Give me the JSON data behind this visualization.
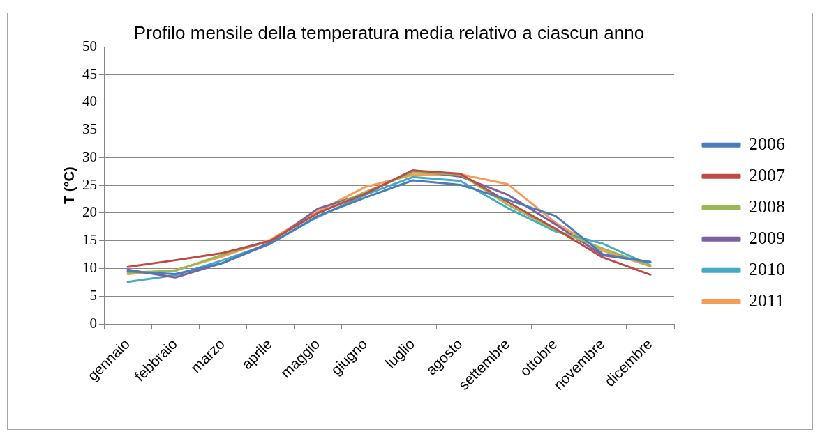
{
  "chart_data": {
    "type": "line",
    "title": "Profilo mensile della temperatura media relativo a ciascun anno",
    "ylabel": "T (°C)",
    "categories": [
      "gennaio",
      "febbraio",
      "marzo",
      "aprile",
      "maggio",
      "giugno",
      "luglio",
      "agosto",
      "settembre",
      "ottobre",
      "novembre",
      "dicembre"
    ],
    "series": [
      {
        "name": "2006",
        "color": "#4a7ebb",
        "values": [
          9.5,
          9.0,
          11.0,
          14.5,
          19.5,
          22.8,
          25.9,
          25.1,
          22.4,
          19.5,
          12.6,
          11.1
        ]
      },
      {
        "name": "2007",
        "color": "#be4b48",
        "values": [
          10.3,
          11.5,
          12.8,
          15.0,
          20.0,
          23.5,
          27.7,
          27.1,
          22.0,
          17.2,
          12.0,
          8.9
        ]
      },
      {
        "name": "2008",
        "color": "#98b954",
        "values": [
          9.3,
          9.6,
          12.5,
          15.0,
          20.0,
          23.8,
          27.3,
          27.0,
          21.5,
          17.0,
          13.6,
          10.5
        ]
      },
      {
        "name": "2009",
        "color": "#7d60a0",
        "values": [
          9.8,
          8.4,
          11.0,
          14.7,
          20.8,
          23.5,
          27.7,
          26.6,
          23.3,
          18.0,
          12.4,
          11.2
        ]
      },
      {
        "name": "2010",
        "color": "#46aac5",
        "values": [
          7.6,
          8.8,
          11.5,
          14.5,
          19.3,
          23.3,
          26.5,
          25.8,
          20.9,
          16.7,
          14.5,
          10.6
        ]
      },
      {
        "name": "2011",
        "color": "#f59d56",
        "values": [
          9.0,
          9.7,
          12.2,
          15.2,
          20.3,
          24.7,
          26.9,
          27.0,
          25.2,
          18.3,
          13.2,
          10.4
        ]
      }
    ],
    "ylim": [
      0,
      50
    ],
    "yticks": [
      0,
      5,
      10,
      15,
      20,
      25,
      30,
      35,
      40,
      45,
      50
    ],
    "grid": "y",
    "legend": "right",
    "marker": "none",
    "line_style": "solid"
  }
}
